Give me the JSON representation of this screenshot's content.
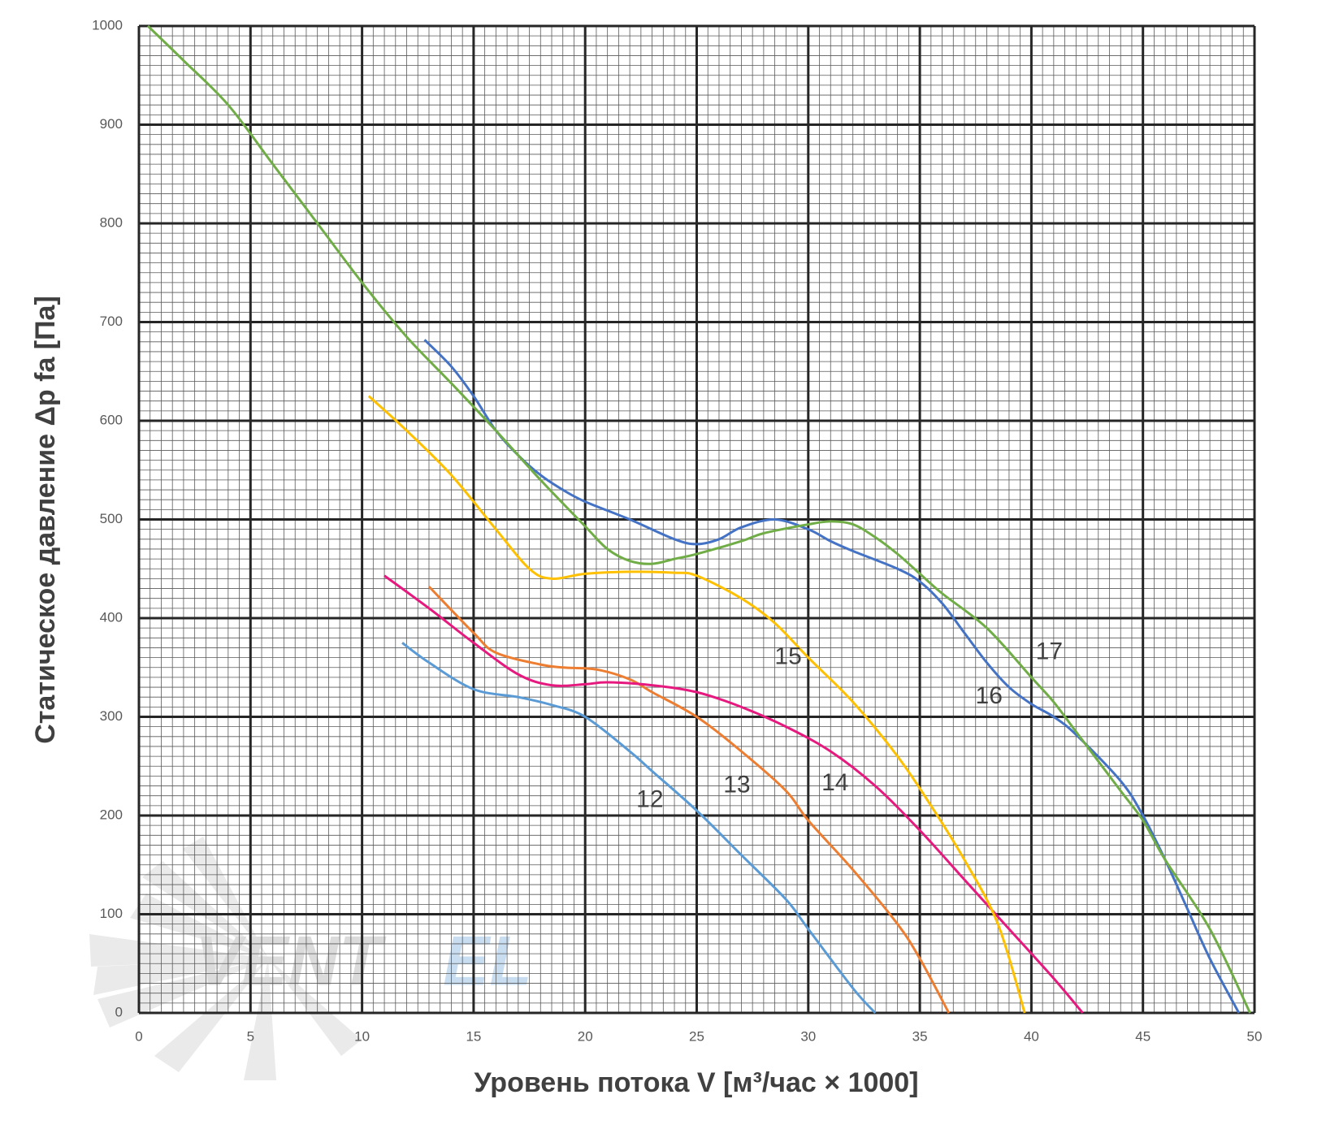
{
  "chart_data": {
    "type": "line",
    "xlabel": "Уровень потока V [м³/час × 1000]",
    "ylabel": "Статическое давление Δp fa [Па]",
    "xlim": [
      0,
      50
    ],
    "ylim": [
      0,
      1000
    ],
    "xticks": [
      0,
      5,
      10,
      15,
      20,
      25,
      30,
      35,
      40,
      45,
      50
    ],
    "yticks": [
      0,
      100,
      200,
      300,
      400,
      500,
      600,
      700,
      800,
      900,
      1000
    ],
    "grid": true,
    "minor_grid": {
      "x": 0.5,
      "y": 10
    },
    "watermark": {
      "part1": "VENT",
      "part2": "EL"
    },
    "series": [
      {
        "name": "12",
        "color": "#5b9bd5",
        "x": [
          11.8,
          13,
          15,
          17,
          18.5,
          20,
          22,
          23,
          25,
          27,
          29,
          30,
          32,
          33
        ],
        "values": [
          375,
          355,
          328,
          320,
          312,
          300,
          265,
          245,
          205,
          160,
          115,
          85,
          25,
          0
        ]
      },
      {
        "name": "13",
        "color": "#ed7d31",
        "x": [
          13,
          15,
          16,
          18,
          19,
          20.5,
          22,
          23,
          25,
          27,
          29,
          30,
          32,
          34,
          35,
          36.3
        ],
        "values": [
          432,
          385,
          365,
          353,
          350,
          348,
          338,
          325,
          300,
          265,
          225,
          195,
          145,
          90,
          55,
          0
        ]
      },
      {
        "name": "14",
        "color": "#e6197f",
        "x": [
          11,
          13,
          15,
          17,
          18.5,
          20,
          21,
          23,
          25,
          27,
          29,
          31,
          33,
          35,
          37,
          39,
          41,
          42.3
        ],
        "values": [
          443,
          410,
          375,
          343,
          332,
          333,
          335,
          332,
          325,
          310,
          290,
          265,
          230,
          185,
          135,
          85,
          35,
          0
        ]
      },
      {
        "name": "15",
        "color": "#ffc000",
        "x": [
          10.3,
          12,
          14,
          16,
          17.5,
          18.5,
          20,
          22,
          24,
          25,
          27,
          28.5,
          30,
          32,
          34,
          35.5,
          37,
          38.5,
          39.7
        ],
        "values": [
          625,
          590,
          545,
          490,
          450,
          440,
          445,
          447,
          446,
          443,
          420,
          395,
          360,
          315,
          260,
          210,
          155,
          90,
          0
        ]
      },
      {
        "name": "16",
        "color": "#4472c4",
        "x": [
          12.8,
          14,
          15,
          16,
          17,
          18,
          19,
          20,
          22,
          24,
          25,
          26,
          27,
          28.5,
          30,
          31,
          32,
          34,
          35,
          36,
          37,
          38,
          39,
          40,
          41,
          42,
          44,
          45,
          46,
          47,
          48,
          49.3
        ],
        "values": [
          682,
          655,
          625,
          590,
          565,
          545,
          530,
          518,
          500,
          480,
          475,
          480,
          492,
          500,
          490,
          478,
          468,
          450,
          437,
          415,
          385,
          355,
          330,
          313,
          300,
          282,
          235,
          200,
          155,
          105,
          55,
          0
        ]
      },
      {
        "name": "17",
        "color": "#70ad47",
        "x": [
          0.4,
          2,
          4,
          6,
          8,
          10,
          12,
          14,
          16,
          18,
          20,
          21,
          22,
          23,
          24,
          25,
          27,
          28,
          30,
          31,
          32,
          33,
          34,
          35,
          36,
          38,
          40,
          41,
          42,
          44,
          45,
          46,
          48,
          49.8
        ],
        "values": [
          1000,
          965,
          920,
          860,
          800,
          740,
          685,
          638,
          590,
          540,
          493,
          470,
          458,
          455,
          460,
          465,
          478,
          486,
          495,
          498,
          495,
          482,
          465,
          445,
          425,
          390,
          340,
          315,
          285,
          225,
          195,
          155,
          85,
          0
        ]
      }
    ]
  }
}
